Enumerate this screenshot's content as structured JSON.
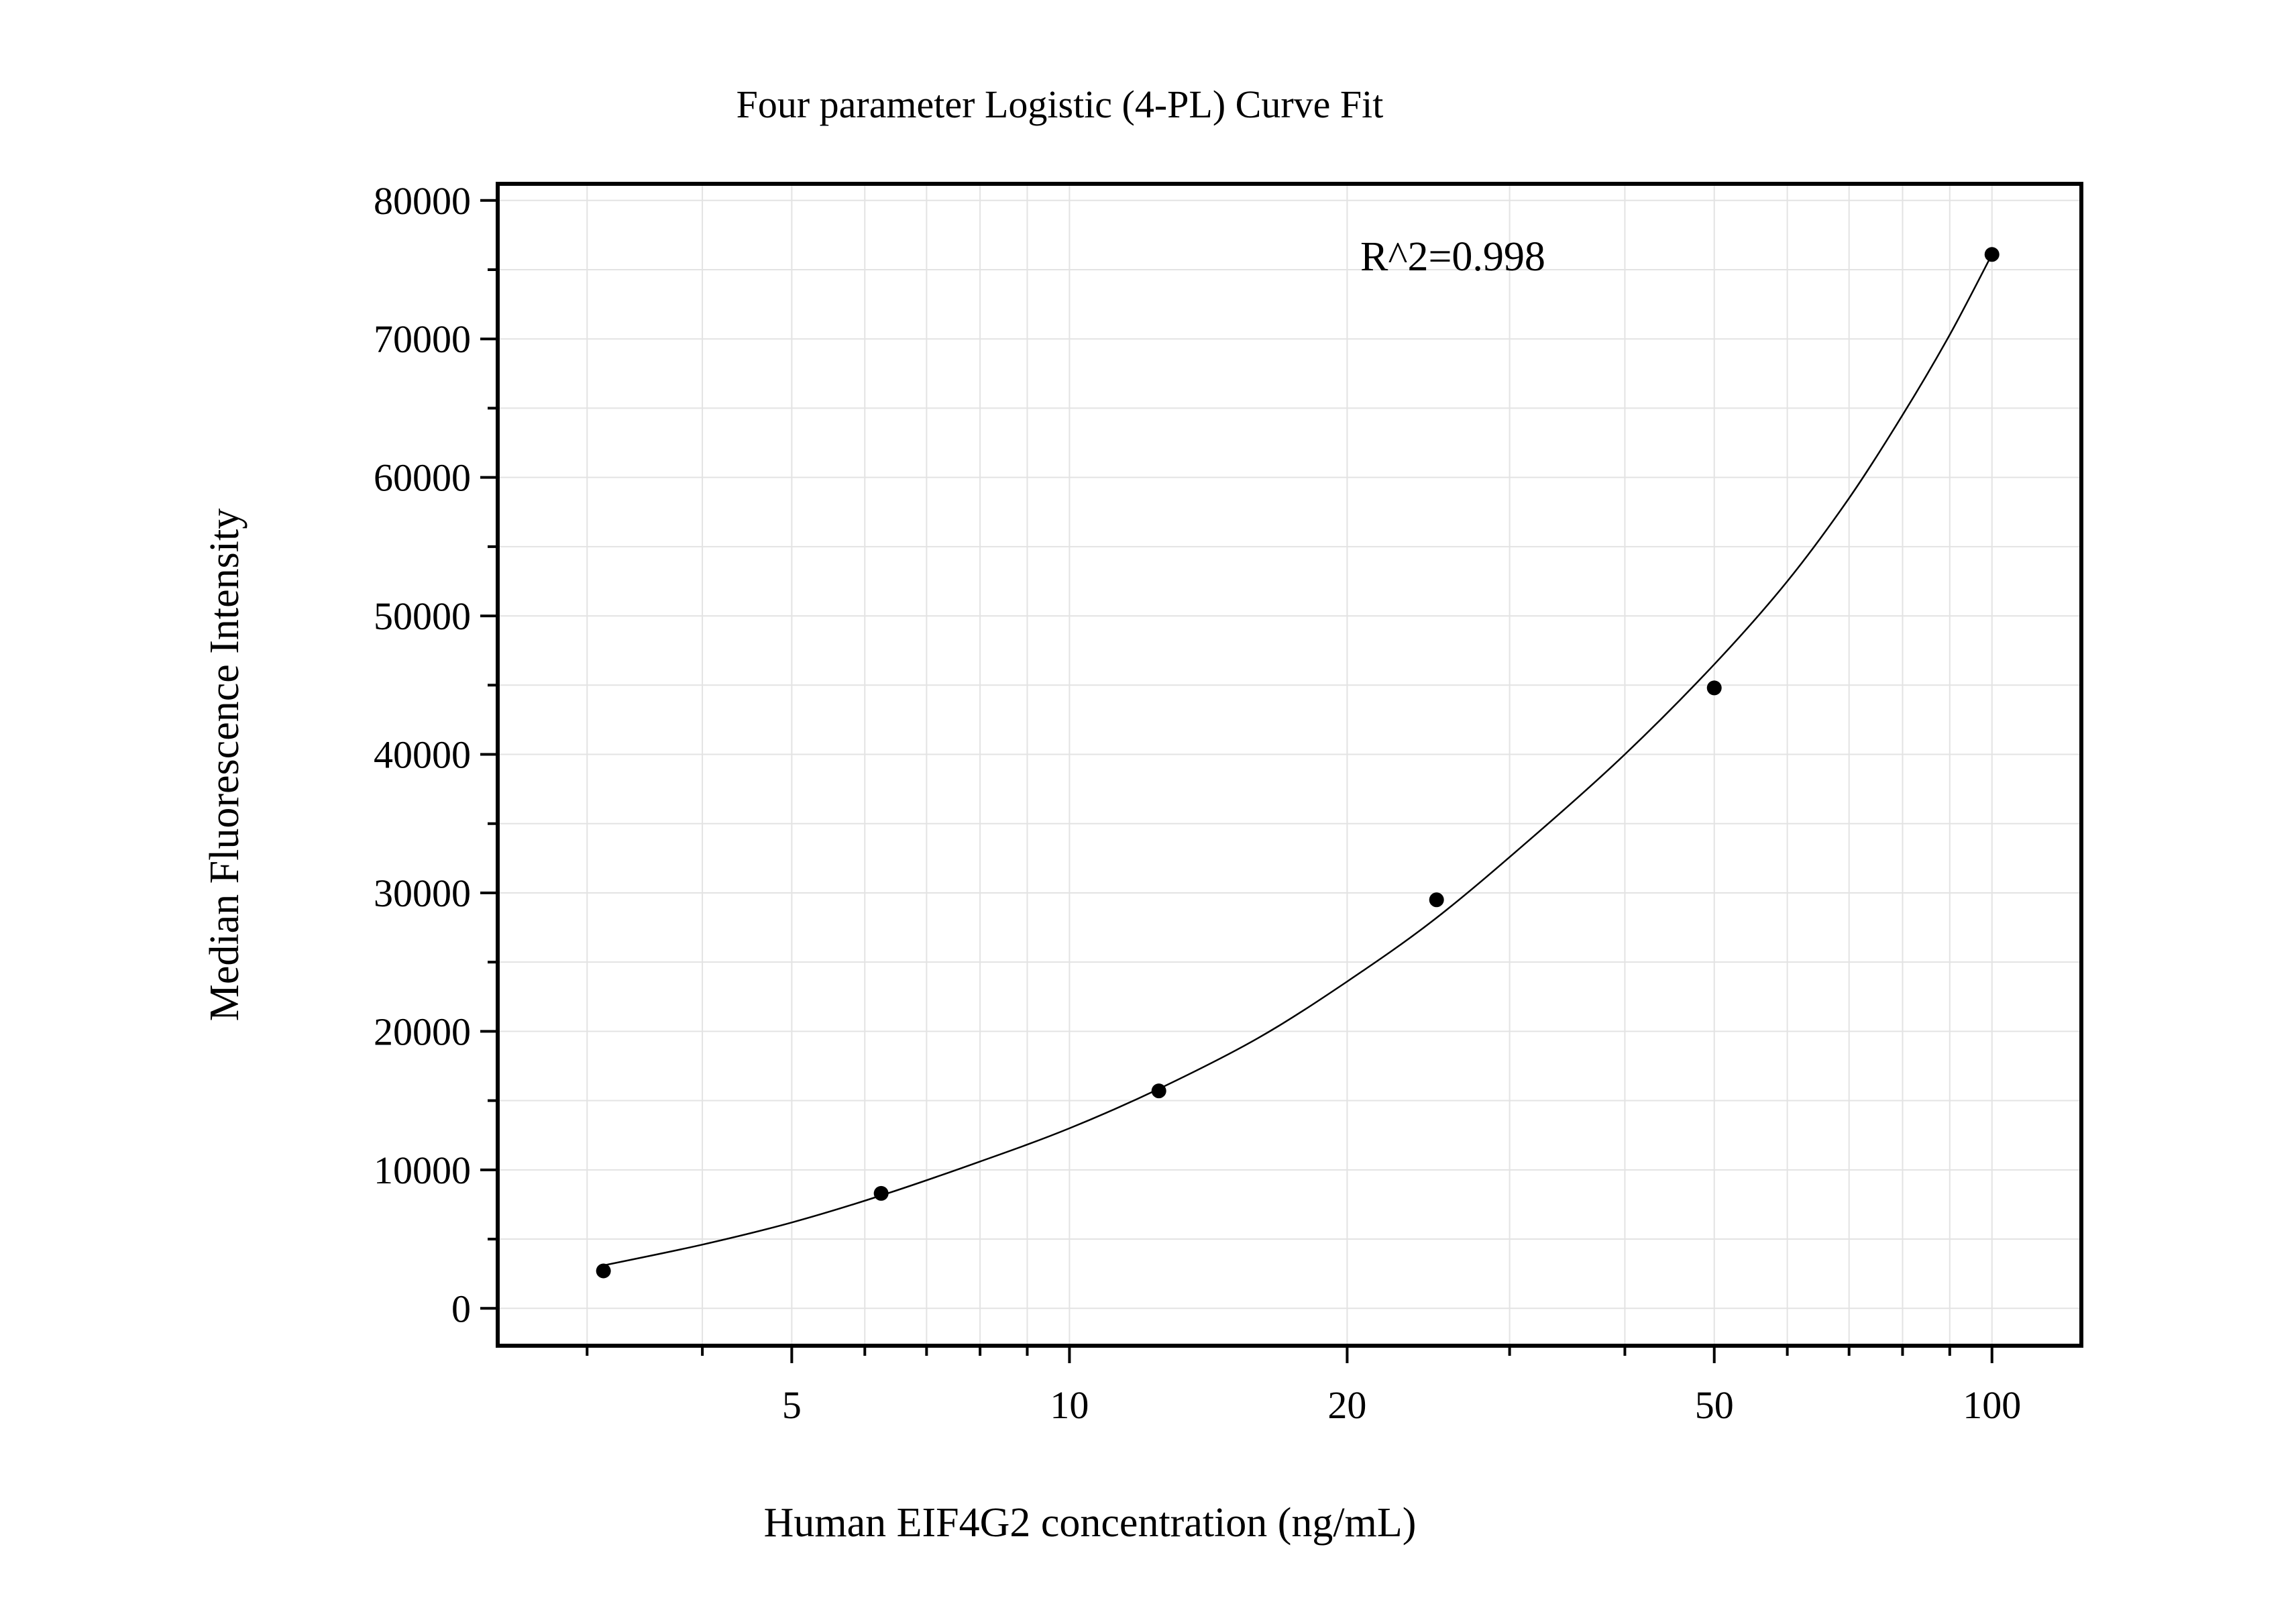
{
  "chart_data": {
    "type": "scatter",
    "title": "Four parameter Logistic (4-PL) Curve Fit",
    "xlabel": "Human EIF4G2 concentration (ng/mL)",
    "ylabel": "Median Fluorescence Intensity",
    "annotation": "R^2=0.998",
    "x_scale": "log",
    "xlim": [
      2.4,
      125
    ],
    "ylim": [
      -2700,
      81200
    ],
    "x_ticks": [
      {
        "value": 5,
        "label": "5"
      },
      {
        "value": 10,
        "label": "10"
      },
      {
        "value": 20,
        "label": "20"
      },
      {
        "value": 50,
        "label": "50"
      },
      {
        "value": 100,
        "label": "100"
      }
    ],
    "y_ticks": [
      {
        "value": 0,
        "label": "0"
      },
      {
        "value": 10000,
        "label": "10000"
      },
      {
        "value": 20000,
        "label": "20000"
      },
      {
        "value": 30000,
        "label": "30000"
      },
      {
        "value": 40000,
        "label": "40000"
      },
      {
        "value": 50000,
        "label": "50000"
      },
      {
        "value": 60000,
        "label": "60000"
      },
      {
        "value": 70000,
        "label": "70000"
      },
      {
        "value": 80000,
        "label": "80000"
      }
    ],
    "grid": true,
    "series": [
      {
        "points": [
          {
            "x": 3.125,
            "y": 2700
          },
          {
            "x": 6.25,
            "y": 8300
          },
          {
            "x": 12.5,
            "y": 15700
          },
          {
            "x": 25,
            "y": 29500
          },
          {
            "x": 50,
            "y": 44800
          },
          {
            "x": 100,
            "y": 76100
          }
        ],
        "fit_curve": [
          {
            "x": 3.125,
            "y": 3100
          },
          {
            "x": 4,
            "y": 4600
          },
          {
            "x": 5,
            "y": 6200
          },
          {
            "x": 6.25,
            "y": 8150
          },
          {
            "x": 8,
            "y": 10600
          },
          {
            "x": 10,
            "y": 13000
          },
          {
            "x": 12.5,
            "y": 15850
          },
          {
            "x": 16,
            "y": 19500
          },
          {
            "x": 20,
            "y": 23600
          },
          {
            "x": 25,
            "y": 28200
          },
          {
            "x": 32,
            "y": 34200
          },
          {
            "x": 40,
            "y": 40000
          },
          {
            "x": 50,
            "y": 46500
          },
          {
            "x": 60,
            "y": 52500
          },
          {
            "x": 70,
            "y": 58500
          },
          {
            "x": 80,
            "y": 64500
          },
          {
            "x": 90,
            "y": 70300
          },
          {
            "x": 100,
            "y": 76100
          }
        ]
      }
    ],
    "colors": {
      "marker": "#000000",
      "curve": "#000000",
      "grid": "#e3e3e3",
      "frame": "#000000"
    }
  }
}
